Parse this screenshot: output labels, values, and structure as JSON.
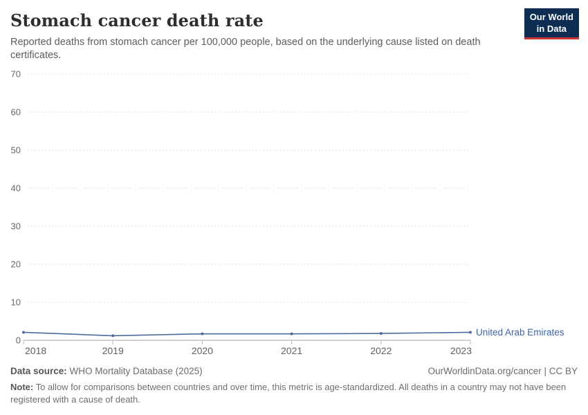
{
  "header": {
    "title": "Stomach cancer death rate",
    "subtitle": "Reported deaths from stomach cancer per 100,000 people, based on the underlying cause listed on death certificates.",
    "logo": {
      "line1": "Our World",
      "line2": "in Data",
      "bg_color": "#0d2e52",
      "accent_color": "#cc3732"
    }
  },
  "chart_data": {
    "type": "line",
    "title": "Stomach cancer death rate",
    "x": [
      2018,
      2019,
      2020,
      2021,
      2022,
      2023
    ],
    "series": [
      {
        "name": "United Arab Emirates",
        "values": [
          2.1,
          1.2,
          1.7,
          1.7,
          1.8,
          2.1
        ],
        "color": "#4c6a9c",
        "label_color": "#3d64a8"
      }
    ],
    "xlabel": "",
    "ylabel": "",
    "ylim": [
      0,
      70
    ],
    "yticks": [
      0,
      10,
      20,
      30,
      40,
      50,
      60,
      70
    ],
    "grid": "horizontal-dashed",
    "legend_position": "end-of-line-label"
  },
  "footer": {
    "source_label": "Data source:",
    "source_value": " WHO Mortality Database (2025)",
    "license": "OurWorldinData.org/cancer | CC BY",
    "note_label": "Note:",
    "note_value": " To allow for comparisons between countries and over time, this metric is age-standardized. All deaths in a country may not have been registered with a cause of death."
  }
}
